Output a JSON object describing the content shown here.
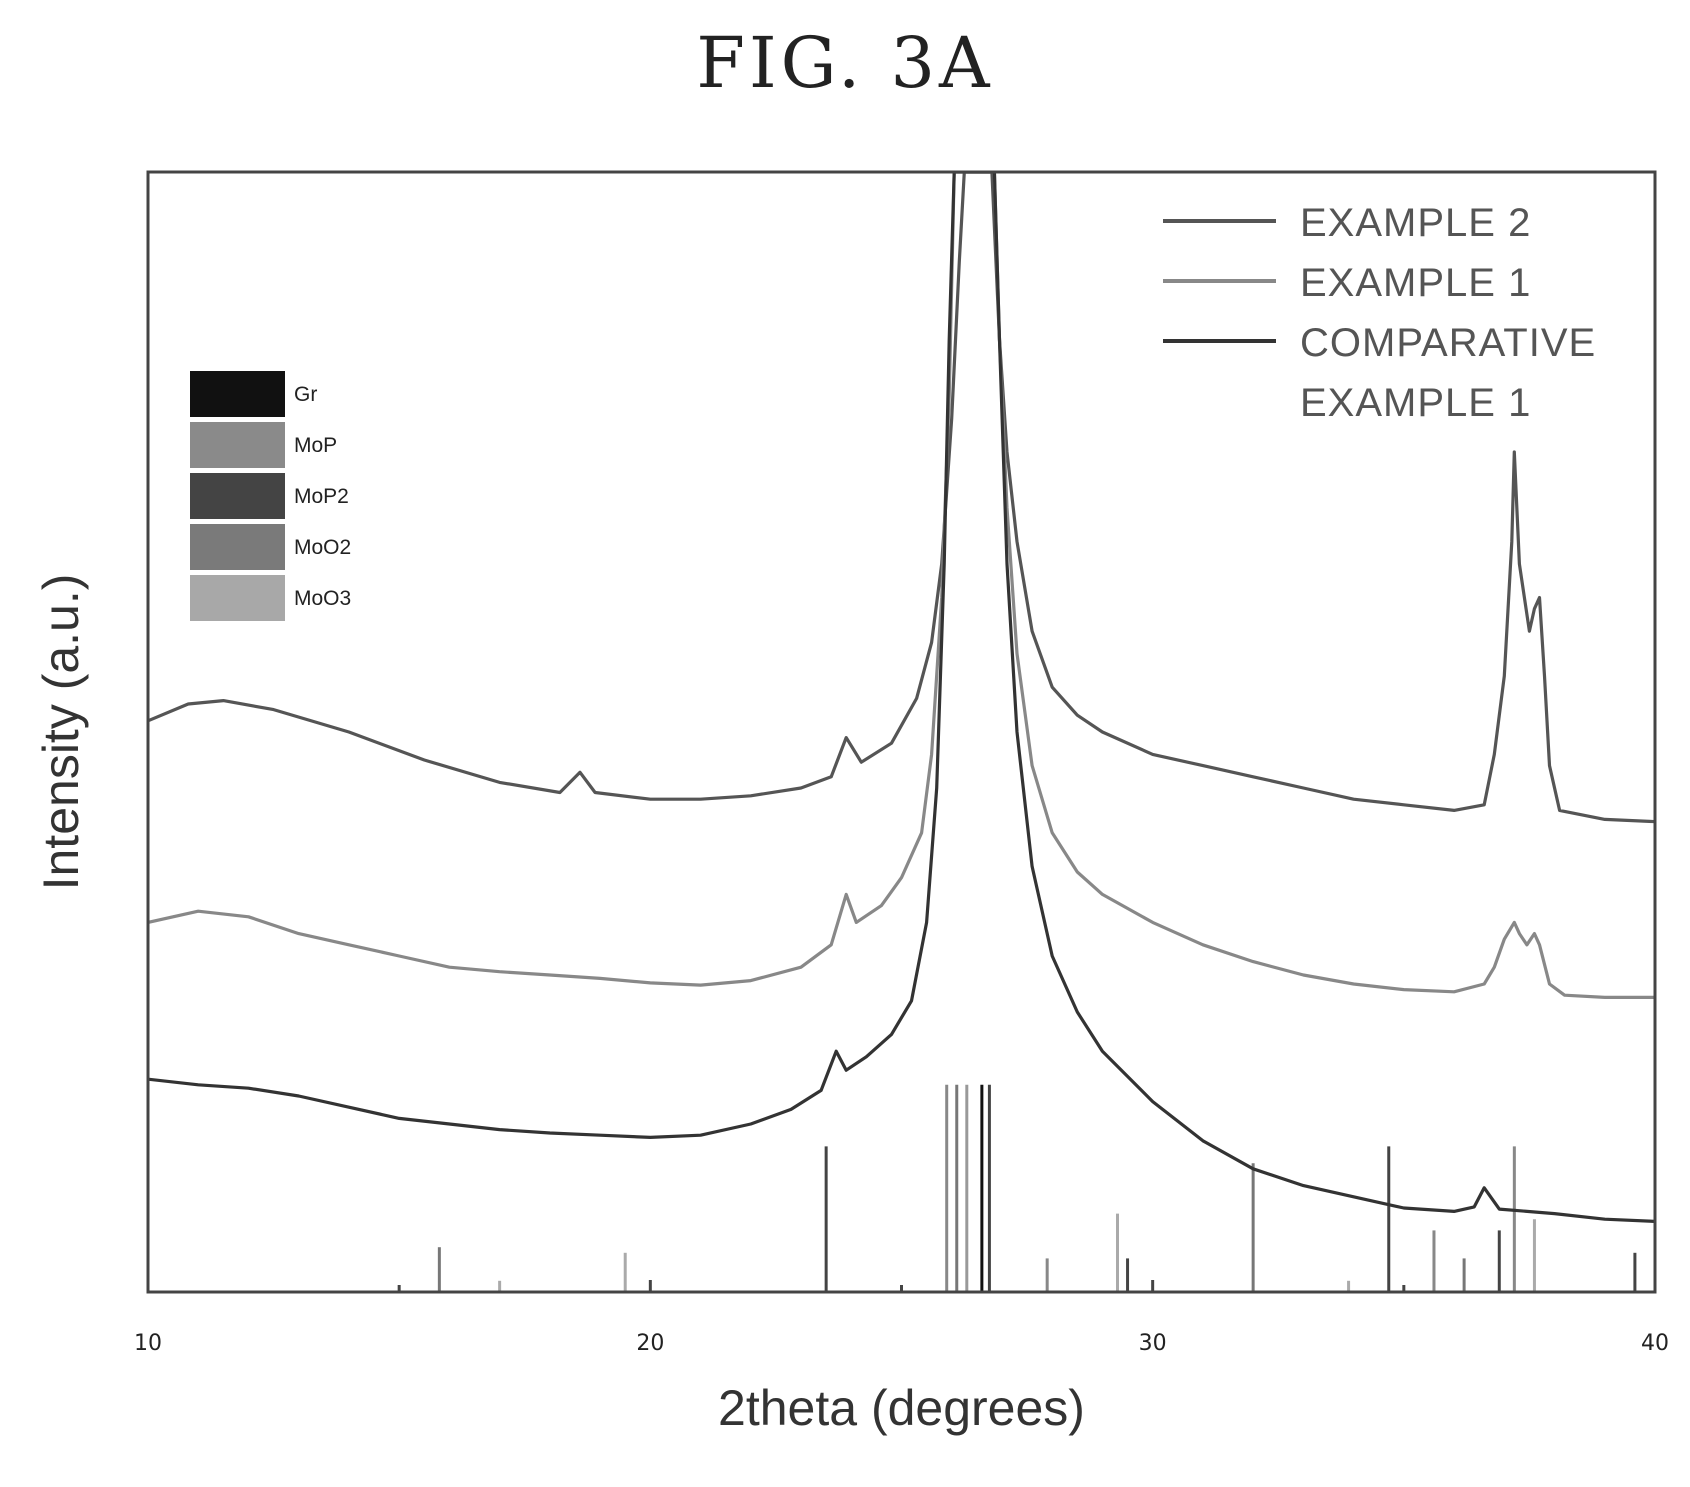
{
  "figure": {
    "title": "FIG. 3A"
  },
  "chart_data": {
    "type": "line",
    "title": "FIG. 3A",
    "xlabel": "2theta (degrees)",
    "ylabel": "Intensity (a.u.)",
    "xlim": [
      10,
      40
    ],
    "ylim": [
      0,
      100
    ],
    "xticks": [
      10,
      20,
      30,
      40
    ],
    "legend_position": "top-right",
    "series": [
      {
        "name": "EXAMPLE 2",
        "color": "#555555",
        "points": [
          [
            10.0,
            51
          ],
          [
            10.8,
            52.5
          ],
          [
            11.5,
            52.8
          ],
          [
            12.5,
            52
          ],
          [
            14,
            50
          ],
          [
            15.5,
            47.5
          ],
          [
            17,
            45.5
          ],
          [
            18.2,
            44.6
          ],
          [
            18.6,
            46.4
          ],
          [
            18.9,
            44.6
          ],
          [
            20,
            44
          ],
          [
            21,
            44
          ],
          [
            22,
            44.3
          ],
          [
            23,
            45
          ],
          [
            23.6,
            46
          ],
          [
            23.9,
            49.5
          ],
          [
            24.2,
            47.3
          ],
          [
            24.8,
            49
          ],
          [
            25.3,
            53
          ],
          [
            25.6,
            58
          ],
          [
            25.8,
            65
          ],
          [
            26.0,
            78
          ],
          [
            26.15,
            92
          ],
          [
            26.25,
            100
          ],
          [
            26.65,
            100
          ],
          [
            26.8,
            100
          ],
          [
            26.95,
            85
          ],
          [
            27.1,
            75
          ],
          [
            27.3,
            67
          ],
          [
            27.6,
            59
          ],
          [
            28,
            54
          ],
          [
            28.5,
            51.5
          ],
          [
            29,
            50
          ],
          [
            30,
            48
          ],
          [
            31,
            47
          ],
          [
            32,
            46
          ],
          [
            33,
            45
          ],
          [
            34,
            44
          ],
          [
            35,
            43.5
          ],
          [
            36,
            43
          ],
          [
            36.6,
            43.5
          ],
          [
            36.8,
            48
          ],
          [
            37.0,
            55
          ],
          [
            37.15,
            67
          ],
          [
            37.2,
            75
          ],
          [
            37.3,
            65
          ],
          [
            37.4,
            62
          ],
          [
            37.5,
            59
          ],
          [
            37.6,
            61
          ],
          [
            37.7,
            62
          ],
          [
            37.8,
            55
          ],
          [
            37.9,
            47
          ],
          [
            38.1,
            43
          ],
          [
            39,
            42.2
          ],
          [
            40,
            42
          ]
        ]
      },
      {
        "name": "EXAMPLE 1",
        "color": "#888888",
        "points": [
          [
            10.0,
            33
          ],
          [
            11.0,
            34
          ],
          [
            12,
            33.5
          ],
          [
            13,
            32
          ],
          [
            14,
            31
          ],
          [
            15,
            30
          ],
          [
            16,
            29
          ],
          [
            17,
            28.6
          ],
          [
            18,
            28.3
          ],
          [
            19,
            28
          ],
          [
            20,
            27.6
          ],
          [
            21,
            27.4
          ],
          [
            22,
            27.8
          ],
          [
            23,
            29
          ],
          [
            23.6,
            31
          ],
          [
            23.9,
            35.5
          ],
          [
            24.1,
            33
          ],
          [
            24.6,
            34.5
          ],
          [
            25,
            37
          ],
          [
            25.4,
            41
          ],
          [
            25.6,
            48
          ],
          [
            25.8,
            62
          ],
          [
            25.95,
            80
          ],
          [
            26.05,
            100
          ],
          [
            26.85,
            100
          ],
          [
            26.95,
            85
          ],
          [
            27.1,
            70
          ],
          [
            27.3,
            57
          ],
          [
            27.6,
            47
          ],
          [
            28,
            41
          ],
          [
            28.5,
            37.5
          ],
          [
            29,
            35.5
          ],
          [
            30,
            33
          ],
          [
            31,
            31
          ],
          [
            32,
            29.5
          ],
          [
            33,
            28.3
          ],
          [
            34,
            27.5
          ],
          [
            35,
            27
          ],
          [
            36,
            26.8
          ],
          [
            36.6,
            27.5
          ],
          [
            36.8,
            29
          ],
          [
            37.0,
            31.5
          ],
          [
            37.2,
            33
          ],
          [
            37.3,
            32
          ],
          [
            37.45,
            31
          ],
          [
            37.6,
            32
          ],
          [
            37.7,
            31
          ],
          [
            37.9,
            27.5
          ],
          [
            38.2,
            26.5
          ],
          [
            39,
            26.3
          ],
          [
            40,
            26.3
          ]
        ]
      },
      {
        "name": "COMPARATIVE EXAMPLE 1",
        "color": "#333333",
        "points": [
          [
            10.0,
            19
          ],
          [
            11,
            18.5
          ],
          [
            12,
            18.2
          ],
          [
            13,
            17.5
          ],
          [
            14,
            16.5
          ],
          [
            15,
            15.5
          ],
          [
            16,
            15
          ],
          [
            17,
            14.5
          ],
          [
            18,
            14.2
          ],
          [
            19,
            14
          ],
          [
            20,
            13.8
          ],
          [
            21,
            14
          ],
          [
            22,
            15
          ],
          [
            22.8,
            16.3
          ],
          [
            23.4,
            18
          ],
          [
            23.7,
            21.5
          ],
          [
            23.9,
            19.8
          ],
          [
            24.3,
            21
          ],
          [
            24.8,
            23
          ],
          [
            25.2,
            26
          ],
          [
            25.5,
            33
          ],
          [
            25.7,
            45
          ],
          [
            25.85,
            65
          ],
          [
            25.95,
            85
          ],
          [
            26.05,
            100
          ],
          [
            26.85,
            100
          ],
          [
            26.95,
            85
          ],
          [
            27.1,
            65
          ],
          [
            27.3,
            50
          ],
          [
            27.6,
            38
          ],
          [
            28,
            30
          ],
          [
            28.5,
            25
          ],
          [
            29,
            21.5
          ],
          [
            30,
            17
          ],
          [
            31,
            13.5
          ],
          [
            32,
            11
          ],
          [
            33,
            9.5
          ],
          [
            34,
            8.5
          ],
          [
            35,
            7.5
          ],
          [
            36,
            7.2
          ],
          [
            36.4,
            7.6
          ],
          [
            36.6,
            9.3
          ],
          [
            36.9,
            7.4
          ],
          [
            38,
            7
          ],
          [
            39,
            6.5
          ],
          [
            40,
            6.3
          ]
        ]
      }
    ],
    "reference_legend": [
      {
        "label": "Gr",
        "color": "#111111"
      },
      {
        "label": "MoP",
        "color": "#8a8a8a"
      },
      {
        "label": "MoP2",
        "color": "#444444"
      },
      {
        "label": "MoO2",
        "color": "#7a7a7a"
      },
      {
        "label": "MoO3",
        "color": "#a8a8a8"
      }
    ],
    "reference_peaks": [
      {
        "x": 15.8,
        "h": 4,
        "color": "#777777"
      },
      {
        "x": 17.0,
        "h": 1,
        "color": "#aaaaaa"
      },
      {
        "x": 19.5,
        "h": 3.5,
        "color": "#aaaaaa"
      },
      {
        "x": 23.5,
        "h": 13,
        "color": "#444444"
      },
      {
        "x": 25.9,
        "h": 18.5,
        "color": "#888888"
      },
      {
        "x": 26.1,
        "h": 18.5,
        "color": "#777777"
      },
      {
        "x": 26.3,
        "h": 18.5,
        "color": "#999999"
      },
      {
        "x": 26.6,
        "h": 18.5,
        "color": "#111111"
      },
      {
        "x": 26.75,
        "h": 18.5,
        "color": "#444444"
      },
      {
        "x": 27.9,
        "h": 3,
        "color": "#888888"
      },
      {
        "x": 29.3,
        "h": 7,
        "color": "#aaaaaa"
      },
      {
        "x": 29.5,
        "h": 3,
        "color": "#444444"
      },
      {
        "x": 32.0,
        "h": 11.5,
        "color": "#777777"
      },
      {
        "x": 33.9,
        "h": 1,
        "color": "#aaaaaa"
      },
      {
        "x": 34.7,
        "h": 13,
        "color": "#444444"
      },
      {
        "x": 35.6,
        "h": 5.5,
        "color": "#888888"
      },
      {
        "x": 36.2,
        "h": 3,
        "color": "#777777"
      },
      {
        "x": 36.9,
        "h": 5.5,
        "color": "#444444"
      },
      {
        "x": 37.2,
        "h": 13,
        "color": "#888888"
      },
      {
        "x": 37.6,
        "h": 6.5,
        "color": "#aaaaaa"
      },
      {
        "x": 39.6,
        "h": 3.5,
        "color": "#444444"
      }
    ]
  }
}
